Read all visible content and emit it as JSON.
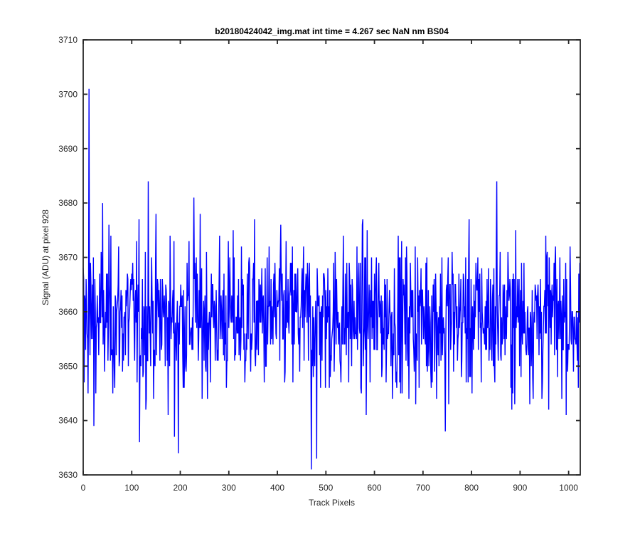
{
  "chart_data": {
    "type": "line",
    "title": "b20180424042_img.mat int time = 4.267 sec  NaN nm BS04",
    "xlabel": "Track Pixels",
    "ylabel": "Signal (ADU) at pixel 928",
    "xlim": [
      0,
      1024
    ],
    "ylim": [
      3630,
      3710
    ],
    "xticks": [
      0,
      100,
      200,
      300,
      400,
      500,
      600,
      700,
      800,
      900,
      1000
    ],
    "yticks": [
      3630,
      3640,
      3650,
      3660,
      3670,
      3680,
      3690,
      3700,
      3710
    ],
    "grid": false,
    "series": [
      {
        "color": "#0000ff",
        "noise_mean": 3659,
        "noise_spread": 7,
        "point_count": 1024,
        "notable_points": [
          {
            "x": 2,
            "y": 3647
          },
          {
            "x": 12,
            "y": 3701
          },
          {
            "x": 14,
            "y": 3652
          },
          {
            "x": 22,
            "y": 3639
          },
          {
            "x": 40,
            "y": 3680
          },
          {
            "x": 116,
            "y": 3636
          },
          {
            "x": 134,
            "y": 3684
          },
          {
            "x": 188,
            "y": 3637
          },
          {
            "x": 196,
            "y": 3634
          },
          {
            "x": 228,
            "y": 3681
          },
          {
            "x": 470,
            "y": 3631
          },
          {
            "x": 481,
            "y": 3633
          },
          {
            "x": 746,
            "y": 3638
          },
          {
            "x": 852,
            "y": 3684
          },
          {
            "x": 1020,
            "y": 3646
          }
        ]
      }
    ]
  }
}
